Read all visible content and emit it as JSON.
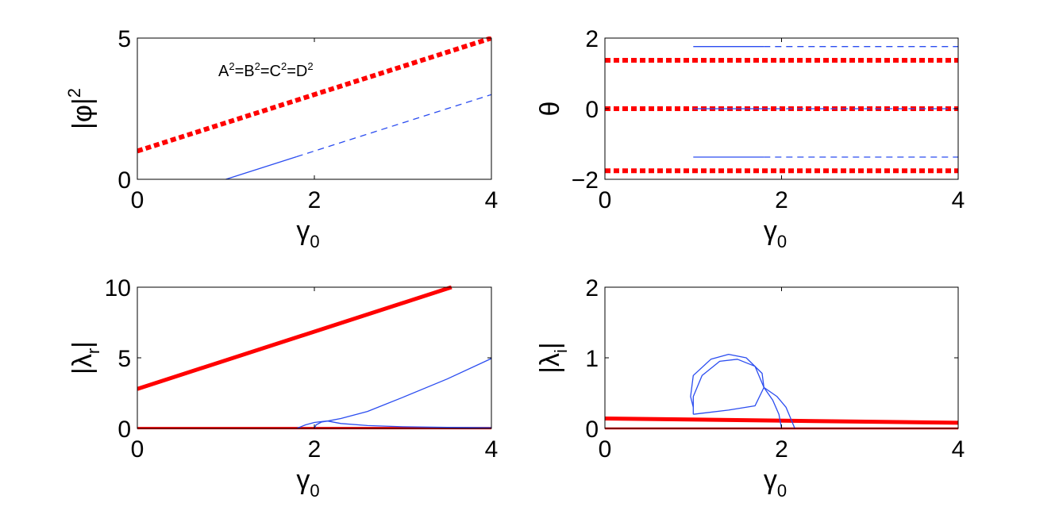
{
  "colors": {
    "red": "#ff0000",
    "blue": "#2a4cf0",
    "axis": "#000000"
  },
  "chart_data": [
    {
      "type": "line",
      "panel": "top-left",
      "ylabel": "|φ|",
      "ylabel_sup": "2",
      "xlabel": "γ",
      "xlabel_sub": "0",
      "annotation": {
        "base": [
          "A",
          "=B",
          "=C",
          "=D"
        ],
        "sup": "2"
      },
      "xlim": [
        0,
        4
      ],
      "ylim": [
        0,
        5
      ],
      "xticks": [
        "0",
        "2",
        "4"
      ],
      "yticks": [
        "0",
        "5"
      ],
      "series": [
        {
          "color": "red",
          "style": "dotted",
          "width": 6,
          "points": [
            [
              0,
              1
            ],
            [
              4,
              5
            ]
          ]
        },
        {
          "color": "blue",
          "style": "solid",
          "width": 1.3,
          "points": [
            [
              1,
              0
            ],
            [
              1.8,
              0.8
            ]
          ]
        },
        {
          "color": "blue",
          "style": "dashed",
          "width": 1.3,
          "points": [
            [
              1.8,
              0.8
            ],
            [
              4,
              3
            ]
          ]
        }
      ]
    },
    {
      "type": "line",
      "panel": "top-right",
      "ylabel": "θ",
      "xlabel": "γ",
      "xlabel_sub": "0",
      "xlim": [
        0,
        4
      ],
      "ylim": [
        -2,
        2
      ],
      "xticks": [
        "0",
        "2",
        "4"
      ],
      "yticks": [
        "−2",
        "0",
        "2"
      ],
      "ytick_values": [
        -2,
        0,
        2
      ],
      "series": [
        {
          "color": "red",
          "style": "dotted",
          "width": 6,
          "points": [
            [
              0,
              1.37
            ],
            [
              4,
              1.37
            ]
          ]
        },
        {
          "color": "red",
          "style": "dotted",
          "width": 6,
          "points": [
            [
              0,
              0
            ],
            [
              4,
              0
            ]
          ]
        },
        {
          "color": "red",
          "style": "dotted",
          "width": 6,
          "points": [
            [
              0,
              -1.76
            ],
            [
              4,
              -1.76
            ]
          ]
        },
        {
          "color": "blue",
          "style": "solid",
          "width": 1.3,
          "points": [
            [
              1,
              1.76
            ],
            [
              1.8,
              1.76
            ]
          ]
        },
        {
          "color": "blue",
          "style": "dashed",
          "width": 1.3,
          "points": [
            [
              1.8,
              1.76
            ],
            [
              4,
              1.76
            ]
          ]
        },
        {
          "color": "blue",
          "style": "solid",
          "width": 1.3,
          "points": [
            [
              1,
              0
            ],
            [
              1.8,
              0
            ]
          ]
        },
        {
          "color": "blue",
          "style": "dashed",
          "width": 1.3,
          "points": [
            [
              1.8,
              0
            ],
            [
              4,
              0
            ]
          ]
        },
        {
          "color": "blue",
          "style": "solid",
          "width": 1.3,
          "points": [
            [
              1,
              -1.37
            ],
            [
              1.8,
              -1.37
            ]
          ]
        },
        {
          "color": "blue",
          "style": "dashed",
          "width": 1.3,
          "points": [
            [
              1.8,
              -1.37
            ],
            [
              4,
              -1.37
            ]
          ]
        }
      ]
    },
    {
      "type": "line",
      "panel": "bottom-left",
      "ylabel": "|λ",
      "ylabel_sub": "r",
      "ylabel_end": "|",
      "xlabel": "γ",
      "xlabel_sub": "0",
      "xlim": [
        0,
        4
      ],
      "ylim": [
        0,
        10
      ],
      "xticks": [
        "0",
        "2",
        "4"
      ],
      "yticks": [
        "0",
        "5",
        "10"
      ],
      "series": [
        {
          "color": "red",
          "style": "solid",
          "width": 5,
          "points": [
            [
              0,
              2.8
            ],
            [
              3.55,
              10
            ]
          ]
        },
        {
          "color": "red",
          "style": "solid",
          "width": 3,
          "points": [
            [
              0,
              0.02
            ],
            [
              4,
              0.02
            ]
          ]
        },
        {
          "color": "blue",
          "style": "solid",
          "width": 1.3,
          "points": [
            [
              1.8,
              0
            ],
            [
              1.9,
              0.25
            ],
            [
              2.0,
              0.42
            ],
            [
              2.1,
              0.5
            ],
            [
              2.15,
              0.52
            ],
            [
              2.3,
              0.7
            ],
            [
              2.6,
              1.2
            ],
            [
              3.0,
              2.2
            ],
            [
              3.5,
              3.5
            ],
            [
              4.0,
              4.95
            ]
          ]
        },
        {
          "color": "blue",
          "style": "solid",
          "width": 1.3,
          "points": [
            [
              2.0,
              0
            ],
            [
              2.02,
              0.25
            ],
            [
              2.08,
              0.45
            ],
            [
              2.15,
              0.52
            ],
            [
              2.3,
              0.35
            ],
            [
              2.6,
              0.2
            ],
            [
              3.0,
              0.12
            ],
            [
              3.5,
              0.08
            ],
            [
              4.0,
              0.05
            ]
          ]
        }
      ]
    },
    {
      "type": "line",
      "panel": "bottom-right",
      "ylabel": "|λ",
      "ylabel_sub": "i",
      "ylabel_end": "|",
      "xlabel": "γ",
      "xlabel_sub": "0",
      "xlim": [
        0,
        4
      ],
      "ylim": [
        0,
        2
      ],
      "xticks": [
        "0",
        "2",
        "4"
      ],
      "yticks": [
        "0",
        "1",
        "2"
      ],
      "series": [
        {
          "color": "red",
          "style": "solid",
          "width": 5,
          "points": [
            [
              0,
              0.14
            ],
            [
              4,
              0.08
            ]
          ]
        },
        {
          "color": "red",
          "style": "solid",
          "width": 2.5,
          "points": [
            [
              0,
              0.0
            ],
            [
              4,
              0.0
            ]
          ]
        },
        {
          "color": "blue",
          "style": "solid",
          "width": 1.3,
          "points": [
            [
              1.0,
              0.2
            ],
            [
              1.0,
              0.45
            ],
            [
              1.1,
              0.75
            ],
            [
              1.3,
              0.95
            ],
            [
              1.5,
              0.98
            ],
            [
              1.7,
              0.88
            ],
            [
              1.8,
              0.58
            ],
            [
              1.95,
              0.45
            ],
            [
              2.05,
              0.3
            ],
            [
              2.15,
              0.0
            ]
          ]
        },
        {
          "color": "blue",
          "style": "solid",
          "width": 1.3,
          "points": [
            [
              1.0,
              0.2
            ],
            [
              1.4,
              0.26
            ],
            [
              1.7,
              0.32
            ],
            [
              1.8,
              0.58
            ],
            [
              1.78,
              0.78
            ],
            [
              1.6,
              1.0
            ],
            [
              1.4,
              1.05
            ],
            [
              1.2,
              0.98
            ],
            [
              1.0,
              0.75
            ],
            [
              0.97,
              0.45
            ],
            [
              1.0,
              0.3
            ]
          ]
        },
        {
          "color": "blue",
          "style": "solid",
          "width": 1.3,
          "points": [
            [
              1.8,
              0.58
            ],
            [
              1.9,
              0.4
            ],
            [
              1.97,
              0.2
            ],
            [
              2.0,
              0.0
            ]
          ]
        }
      ]
    }
  ]
}
